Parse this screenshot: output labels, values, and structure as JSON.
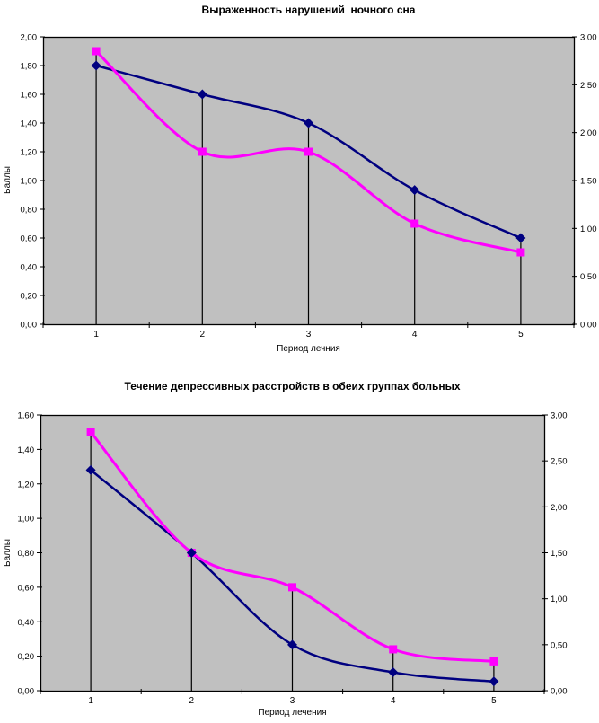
{
  "page": {
    "background": "#FFFFFF"
  },
  "chart_data": [
    {
      "type": "line",
      "title": "Выраженность нарушений  ночного сна",
      "xlabel": "Период лечния",
      "ylabel": "Баллы",
      "categories": [
        "1",
        "2",
        "3",
        "4",
        "5"
      ],
      "left_axis": {
        "min": 0,
        "max": 2.0,
        "step": 0.2,
        "tick_labels": [
          "2,00",
          "1,80",
          "1,60",
          "1,40",
          "1,20",
          "1,00",
          "0,80",
          "0,60",
          "0,40",
          "0,20",
          "0,00"
        ]
      },
      "right_axis": {
        "min": 0,
        "max": 3.0,
        "step": 0.5,
        "tick_labels": [
          "3,00",
          "2,50",
          "2,00",
          "1,50",
          "1,00",
          "0,50",
          "0,00"
        ]
      },
      "series": [
        {
          "name": "navy-diamond",
          "color": "#000080",
          "marker": "diamond",
          "axis": "right",
          "values": [
            2.7,
            2.4,
            2.1,
            1.4,
            0.9
          ]
        },
        {
          "name": "magenta-square",
          "color": "#FF00FF",
          "marker": "square",
          "axis": "left",
          "values": [
            1.9,
            1.2,
            1.2,
            0.7,
            0.5
          ]
        }
      ],
      "smoothed": true,
      "drop_lines": true,
      "grid": false,
      "legend": "none",
      "plot_bg": "#C0C0C0",
      "axis_color": "#000000"
    },
    {
      "type": "line",
      "title": "Течение депрессивных расстройств в обеих группах больных",
      "xlabel": "Период лечения",
      "ylabel": "Баллы",
      "categories": [
        "1",
        "2",
        "3",
        "4",
        "5"
      ],
      "left_axis": {
        "min": 0,
        "max": 1.6,
        "step": 0.2,
        "tick_labels": [
          "1,60",
          "1,40",
          "1,20",
          "1,00",
          "0,80",
          "0,60",
          "0,40",
          "0,20",
          "0,00"
        ]
      },
      "right_axis": {
        "min": 0,
        "max": 3.0,
        "step": 0.5,
        "tick_labels": [
          "3,00",
          "2,50",
          "2,00",
          "1,50",
          "1,00",
          "0,50",
          "0,00"
        ]
      },
      "series": [
        {
          "name": "navy-diamond",
          "color": "#000080",
          "marker": "diamond",
          "axis": "right",
          "values": [
            2.4,
            1.5,
            0.5,
            0.2,
            0.1
          ]
        },
        {
          "name": "magenta-square",
          "color": "#FF00FF",
          "marker": "square",
          "axis": "left",
          "values": [
            1.5,
            0.8,
            0.6,
            0.24,
            0.17
          ]
        }
      ],
      "smoothed": true,
      "drop_lines": true,
      "grid": false,
      "legend": "none",
      "plot_bg": "#C0C0C0",
      "axis_color": "#000000"
    }
  ]
}
